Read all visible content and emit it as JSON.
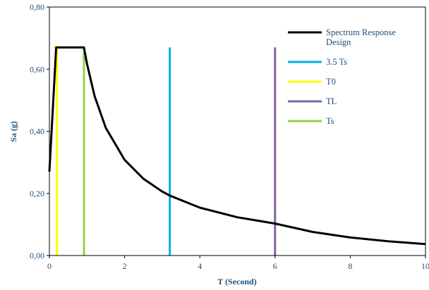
{
  "chart_data": {
    "type": "line",
    "title": "",
    "xlabel": "T (Second)",
    "ylabel": "Sa (g)",
    "xlim": [
      0,
      10
    ],
    "ylim": [
      0,
      0.8
    ],
    "x_ticks": [
      "0",
      "2",
      "4",
      "6",
      "8",
      "10"
    ],
    "y_ticks": [
      "0,00",
      "0,20",
      "0,40",
      "0,60",
      "0,80"
    ],
    "grid": false,
    "legend_position": "top-right",
    "series": [
      {
        "name": "Spectrum Response Design",
        "name_lines": [
          "Spectrum Response",
          "Design"
        ],
        "color": "#000000",
        "x": [
          0,
          0.18,
          0.92,
          1.0,
          1.2,
          1.5,
          2.0,
          2.5,
          3.0,
          3.2,
          4.0,
          5.0,
          6.0,
          7.0,
          8.0,
          9.0,
          10.0
        ],
        "y": [
          0.27,
          0.67,
          0.67,
          0.617,
          0.514,
          0.411,
          0.308,
          0.247,
          0.206,
          0.193,
          0.154,
          0.123,
          0.103,
          0.076,
          0.058,
          0.046,
          0.037
        ]
      },
      {
        "name": "3.5 Ts",
        "name_lines": [
          "3.5 Ts"
        ],
        "color": "#00b0f0",
        "x": [
          3.2,
          3.2
        ],
        "y": [
          0,
          0.67
        ]
      },
      {
        "name": "T0",
        "name_lines": [
          "T0"
        ],
        "color": "#ffff00",
        "x": [
          0.1,
          0.2,
          0.2
        ],
        "y": [
          0.67,
          0.67,
          0
        ]
      },
      {
        "name": "TL",
        "name_lines": [
          "TL"
        ],
        "color": "#8064a2",
        "x": [
          6.0,
          6.0
        ],
        "y": [
          0,
          0.67
        ]
      },
      {
        "name": "Ts",
        "name_lines": [
          "Ts"
        ],
        "color": "#92d050",
        "x": [
          0.92,
          0.92
        ],
        "y": [
          0,
          0.67
        ]
      }
    ]
  }
}
